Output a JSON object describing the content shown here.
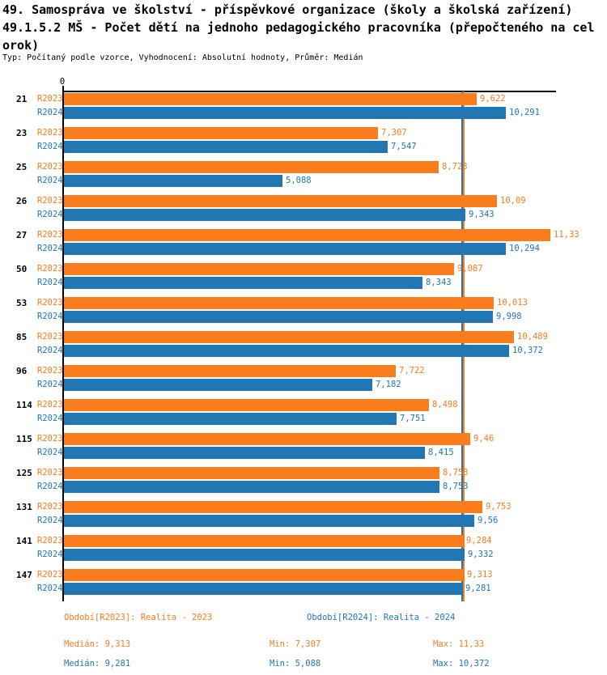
{
  "header": {
    "title_line1": "49. Samospráva ve školství - příspěvkové organizace (školy a školská zařízení)",
    "title_line2": "49.1.5.2 MŠ - Počet dětí na jednoho pedagogického pracovníka (přepočteného na cel",
    "title_line3": "orok)",
    "subtitle": "Typ: Počítaný podle vzorce, Vyhodnocení: Absolutní hodnoty, Průměr: Medián"
  },
  "chart_data": {
    "type": "bar",
    "orientation": "horizontal",
    "title": "49.1.5.2 MŠ - Počet dětí na jednoho pedagogického pracovníka (přepočteného na celorok)",
    "axis": {
      "origin_tick_label": "0",
      "xmin": 0,
      "xmax": 11.5,
      "grid": false
    },
    "categories": [
      "21",
      "23",
      "25",
      "26",
      "27",
      "50",
      "53",
      "85",
      "96",
      "114",
      "115",
      "125",
      "131",
      "141",
      "147"
    ],
    "series": [
      {
        "name": "R2023",
        "color": "#f97d1c",
        "values": [
          9.622,
          7.307,
          8.728,
          10.09,
          11.33,
          9.087,
          10.013,
          10.489,
          7.722,
          8.498,
          9.46,
          8.753,
          9.753,
          9.284,
          9.313
        ],
        "labels": [
          "9,622",
          "7,307",
          "8,728",
          "10,09",
          "11,33",
          "9,087",
          "10,013",
          "10,489",
          "7,722",
          "8,498",
          "9,46",
          "8,753",
          "9,753",
          "9,284",
          "9,313"
        ],
        "median": 9.313
      },
      {
        "name": "R2024",
        "color": "#2176b4",
        "values": [
          10.291,
          7.547,
          5.088,
          9.343,
          10.294,
          8.343,
          9.998,
          10.372,
          7.182,
          7.751,
          8.415,
          8.753,
          9.56,
          9.332,
          9.281
        ],
        "labels": [
          "10,291",
          "7,547",
          "5,088",
          "9,343",
          "10,294",
          "8,343",
          "9,998",
          "10,372",
          "7,182",
          "7,751",
          "8,415",
          "8,753",
          "9,56",
          "9,332",
          "9,281"
        ],
        "median": 9.281
      }
    ],
    "median_lines": [
      {
        "series": "R2023",
        "value": 9.313,
        "color": "#f97d1c"
      },
      {
        "series": "R2024",
        "value": 9.281,
        "color": "#2176b4"
      }
    ],
    "legend_position": "bottom"
  },
  "legend": {
    "r2023": "Období[R2023]: Realita - 2023",
    "r2024": "Období[R2024]: Realita - 2024"
  },
  "stats": {
    "r2023": {
      "median": "Medián: 9,313",
      "min": "Min: 7,307",
      "max": "Max: 11,33"
    },
    "r2024": {
      "median": "Medián: 9,281",
      "min": "Min: 5,088",
      "max": "Max: 10,372"
    }
  },
  "colors": {
    "r2023": "#f97d1c",
    "r2024": "#2176b4",
    "axis": "#000000",
    "background": "#ffffff"
  }
}
